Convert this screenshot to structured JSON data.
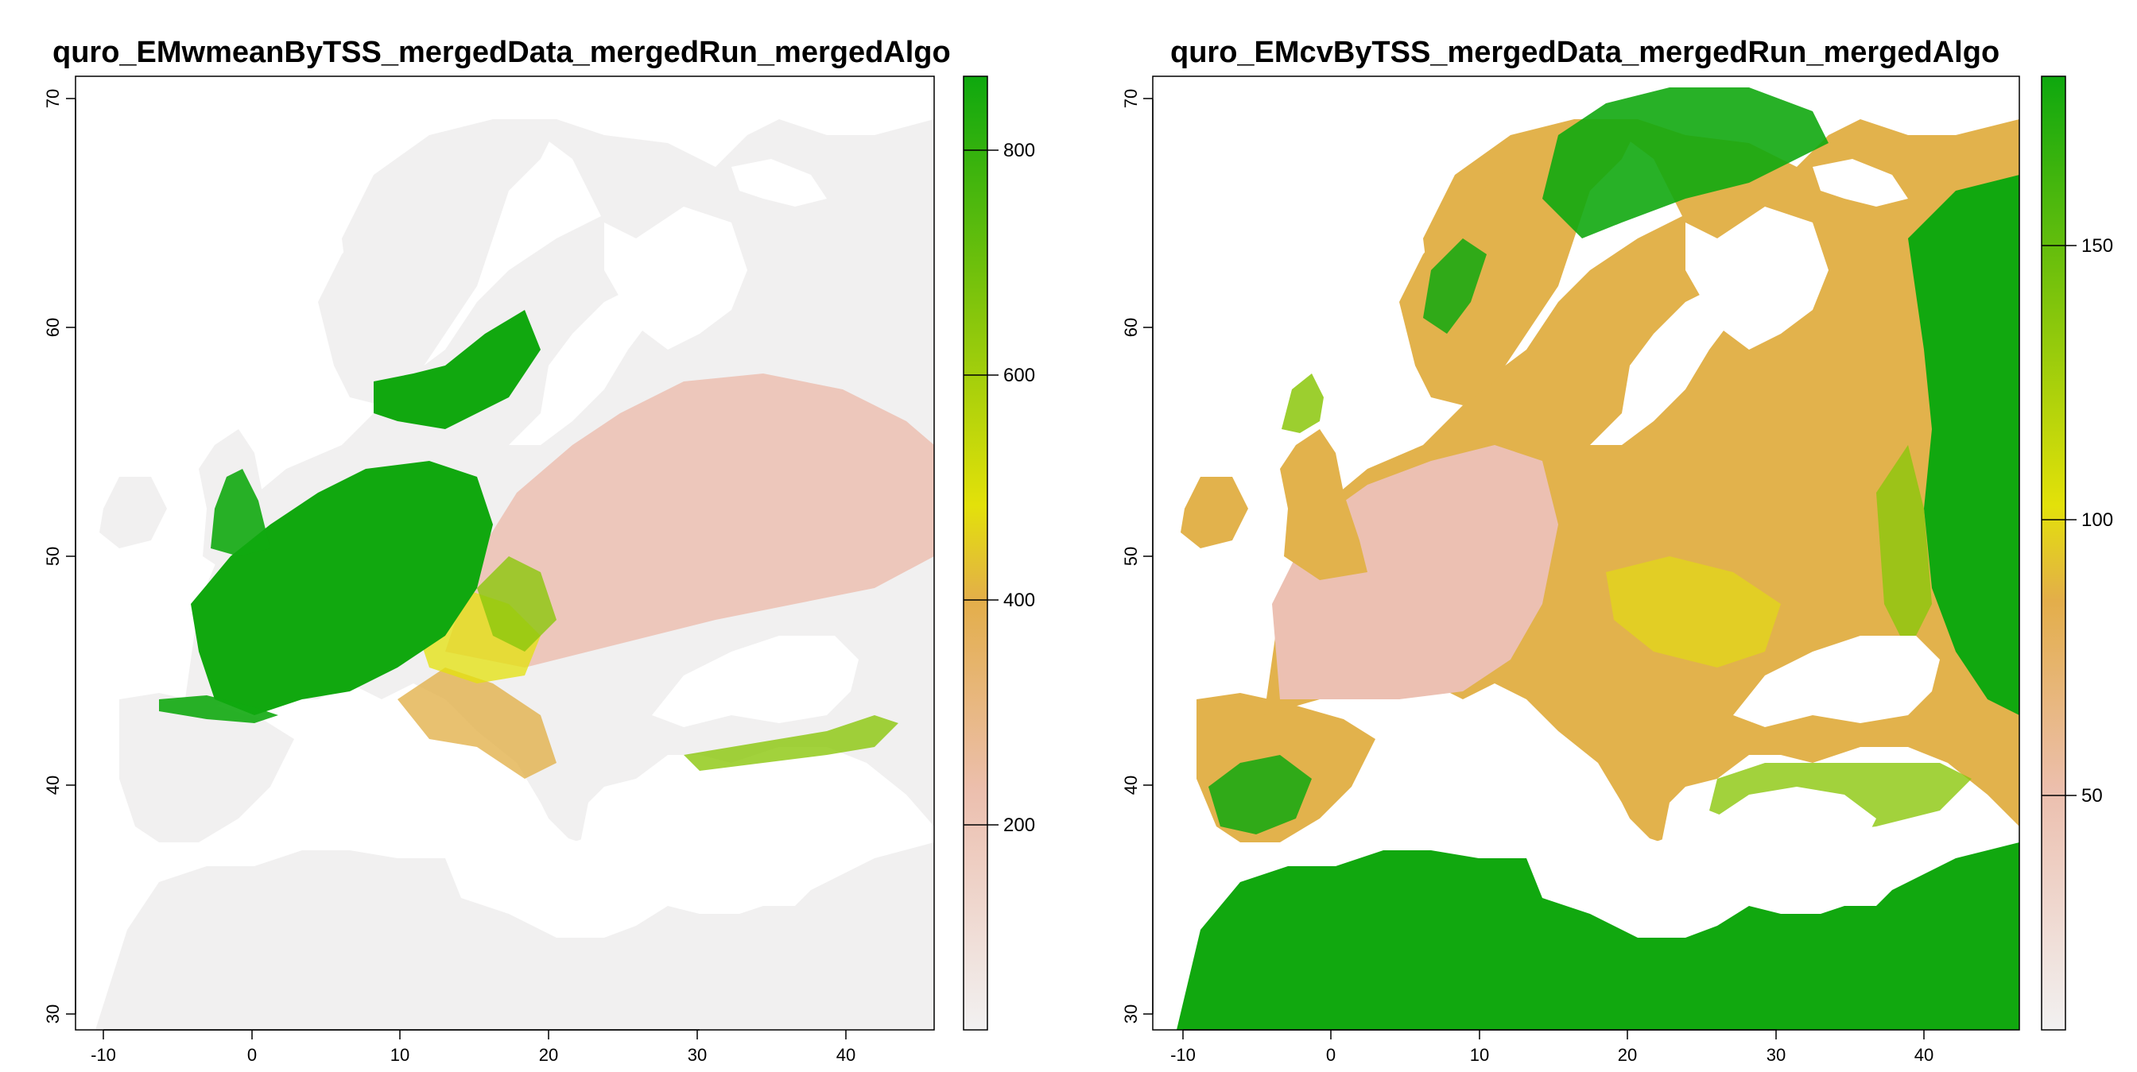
{
  "panels": [
    {
      "title": "quro_EMwmeanByTSS_mergedData_mergedRun_mergedAlgo",
      "map_theme": "suitability",
      "x_ticks": [
        "-10",
        "0",
        "10",
        "20",
        "30",
        "40"
      ],
      "y_ticks": [
        "30",
        "40",
        "50",
        "60",
        "70"
      ],
      "legend_ticks": [
        "200",
        "400",
        "600",
        "800"
      ],
      "legend_range": [
        0,
        860
      ]
    },
    {
      "title": "quro_EMcvByTSS_mergedData_mergedRun_mergedAlgo",
      "map_theme": "cv",
      "x_ticks": [
        "-10",
        "0",
        "10",
        "20",
        "30",
        "40"
      ],
      "y_ticks": [
        "30",
        "40",
        "50",
        "60",
        "70"
      ],
      "legend_ticks": [
        "50",
        "100",
        "150"
      ],
      "legend_range": [
        5,
        180
      ]
    }
  ],
  "colors": {
    "sea": "#ffffff",
    "land_low": "#f1f0f0",
    "pink": "#ecc0b2",
    "orange": "#e2b24c",
    "yellow": "#e3e10b",
    "light_green": "#8bc70b",
    "green": "#11a80f",
    "frame": "#000000"
  }
}
